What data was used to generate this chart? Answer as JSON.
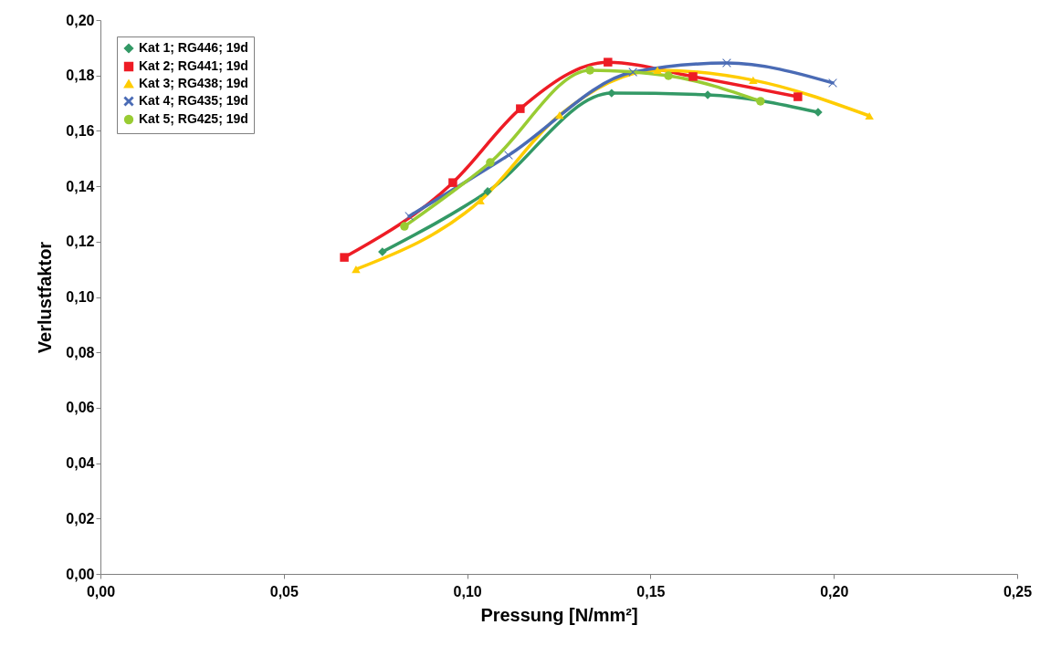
{
  "chart_data": {
    "type": "line",
    "xlabel": "Pressung [N/mm²]",
    "ylabel": "Verlustfaktor",
    "xlim": [
      0,
      0.25
    ],
    "xticks": [
      {
        "value": 0,
        "label": "0,00"
      },
      {
        "value": 0.05,
        "label": "0,05"
      },
      {
        "value": 0.1,
        "label": "0,10"
      },
      {
        "value": 0.15,
        "label": "0,15"
      },
      {
        "value": 0.2,
        "label": "0,20"
      },
      {
        "value": 0.25,
        "label": "0,25"
      }
    ],
    "ylim": [
      0,
      0.2
    ],
    "yticks": [
      {
        "value": 0,
        "label": "0,00"
      },
      {
        "value": 0.02,
        "label": "0,02"
      },
      {
        "value": 0.04,
        "label": "0,04"
      },
      {
        "value": 0.06,
        "label": "0,06"
      },
      {
        "value": 0.08,
        "label": "0,08"
      },
      {
        "value": 0.1,
        "label": "0,10"
      },
      {
        "value": 0.12,
        "label": "0,12"
      },
      {
        "value": 0.14,
        "label": "0,14"
      },
      {
        "value": 0.16,
        "label": "0,16"
      },
      {
        "value": 0.18,
        "label": "0,18"
      },
      {
        "value": 0.2,
        "label": "0,20"
      }
    ],
    "grid": false,
    "legend": "top left",
    "line_style": "solid",
    "series": [
      {
        "name": "Kat 1; RG446; 19d",
        "color": "#339966",
        "marker": "diamond",
        "x": [
          0.0769,
          0.1056,
          0.1394,
          0.1656,
          0.1957
        ],
        "values": [
          0.1163,
          0.1381,
          0.1736,
          0.173,
          0.1667
        ]
      },
      {
        "name": "Kat 2; RG441; 19d",
        "color": "#ee1c25",
        "marker": "square",
        "x": [
          0.0665,
          0.0961,
          0.1145,
          0.1384,
          0.1616,
          0.1902
        ],
        "values": [
          0.1143,
          0.1413,
          0.168,
          0.1848,
          0.1796,
          0.1723
        ]
      },
      {
        "name": "Kat 3; RG438; 19d",
        "color": "#ffcc00",
        "marker": "triangle",
        "x": [
          0.0697,
          0.1036,
          0.1252,
          0.1519,
          0.178,
          0.2097
        ],
        "values": [
          0.11,
          0.1348,
          0.1657,
          0.1819,
          0.1783,
          0.1654
        ]
      },
      {
        "name": "Kat 4; RG435; 19d",
        "color": "#4a6bb5",
        "marker": "cross",
        "x": [
          0.0842,
          0.1113,
          0.1452,
          0.1708,
          0.1997
        ],
        "values": [
          0.1292,
          0.1512,
          0.1812,
          0.1845,
          0.1773
        ]
      },
      {
        "name": "Kat 5; RG425; 19d",
        "color": "#99cc33",
        "marker": "circle",
        "x": [
          0.0829,
          0.1063,
          0.1335,
          0.1549,
          0.18
        ],
        "values": [
          0.1255,
          0.1486,
          0.1819,
          0.1799,
          0.1707
        ]
      }
    ]
  }
}
